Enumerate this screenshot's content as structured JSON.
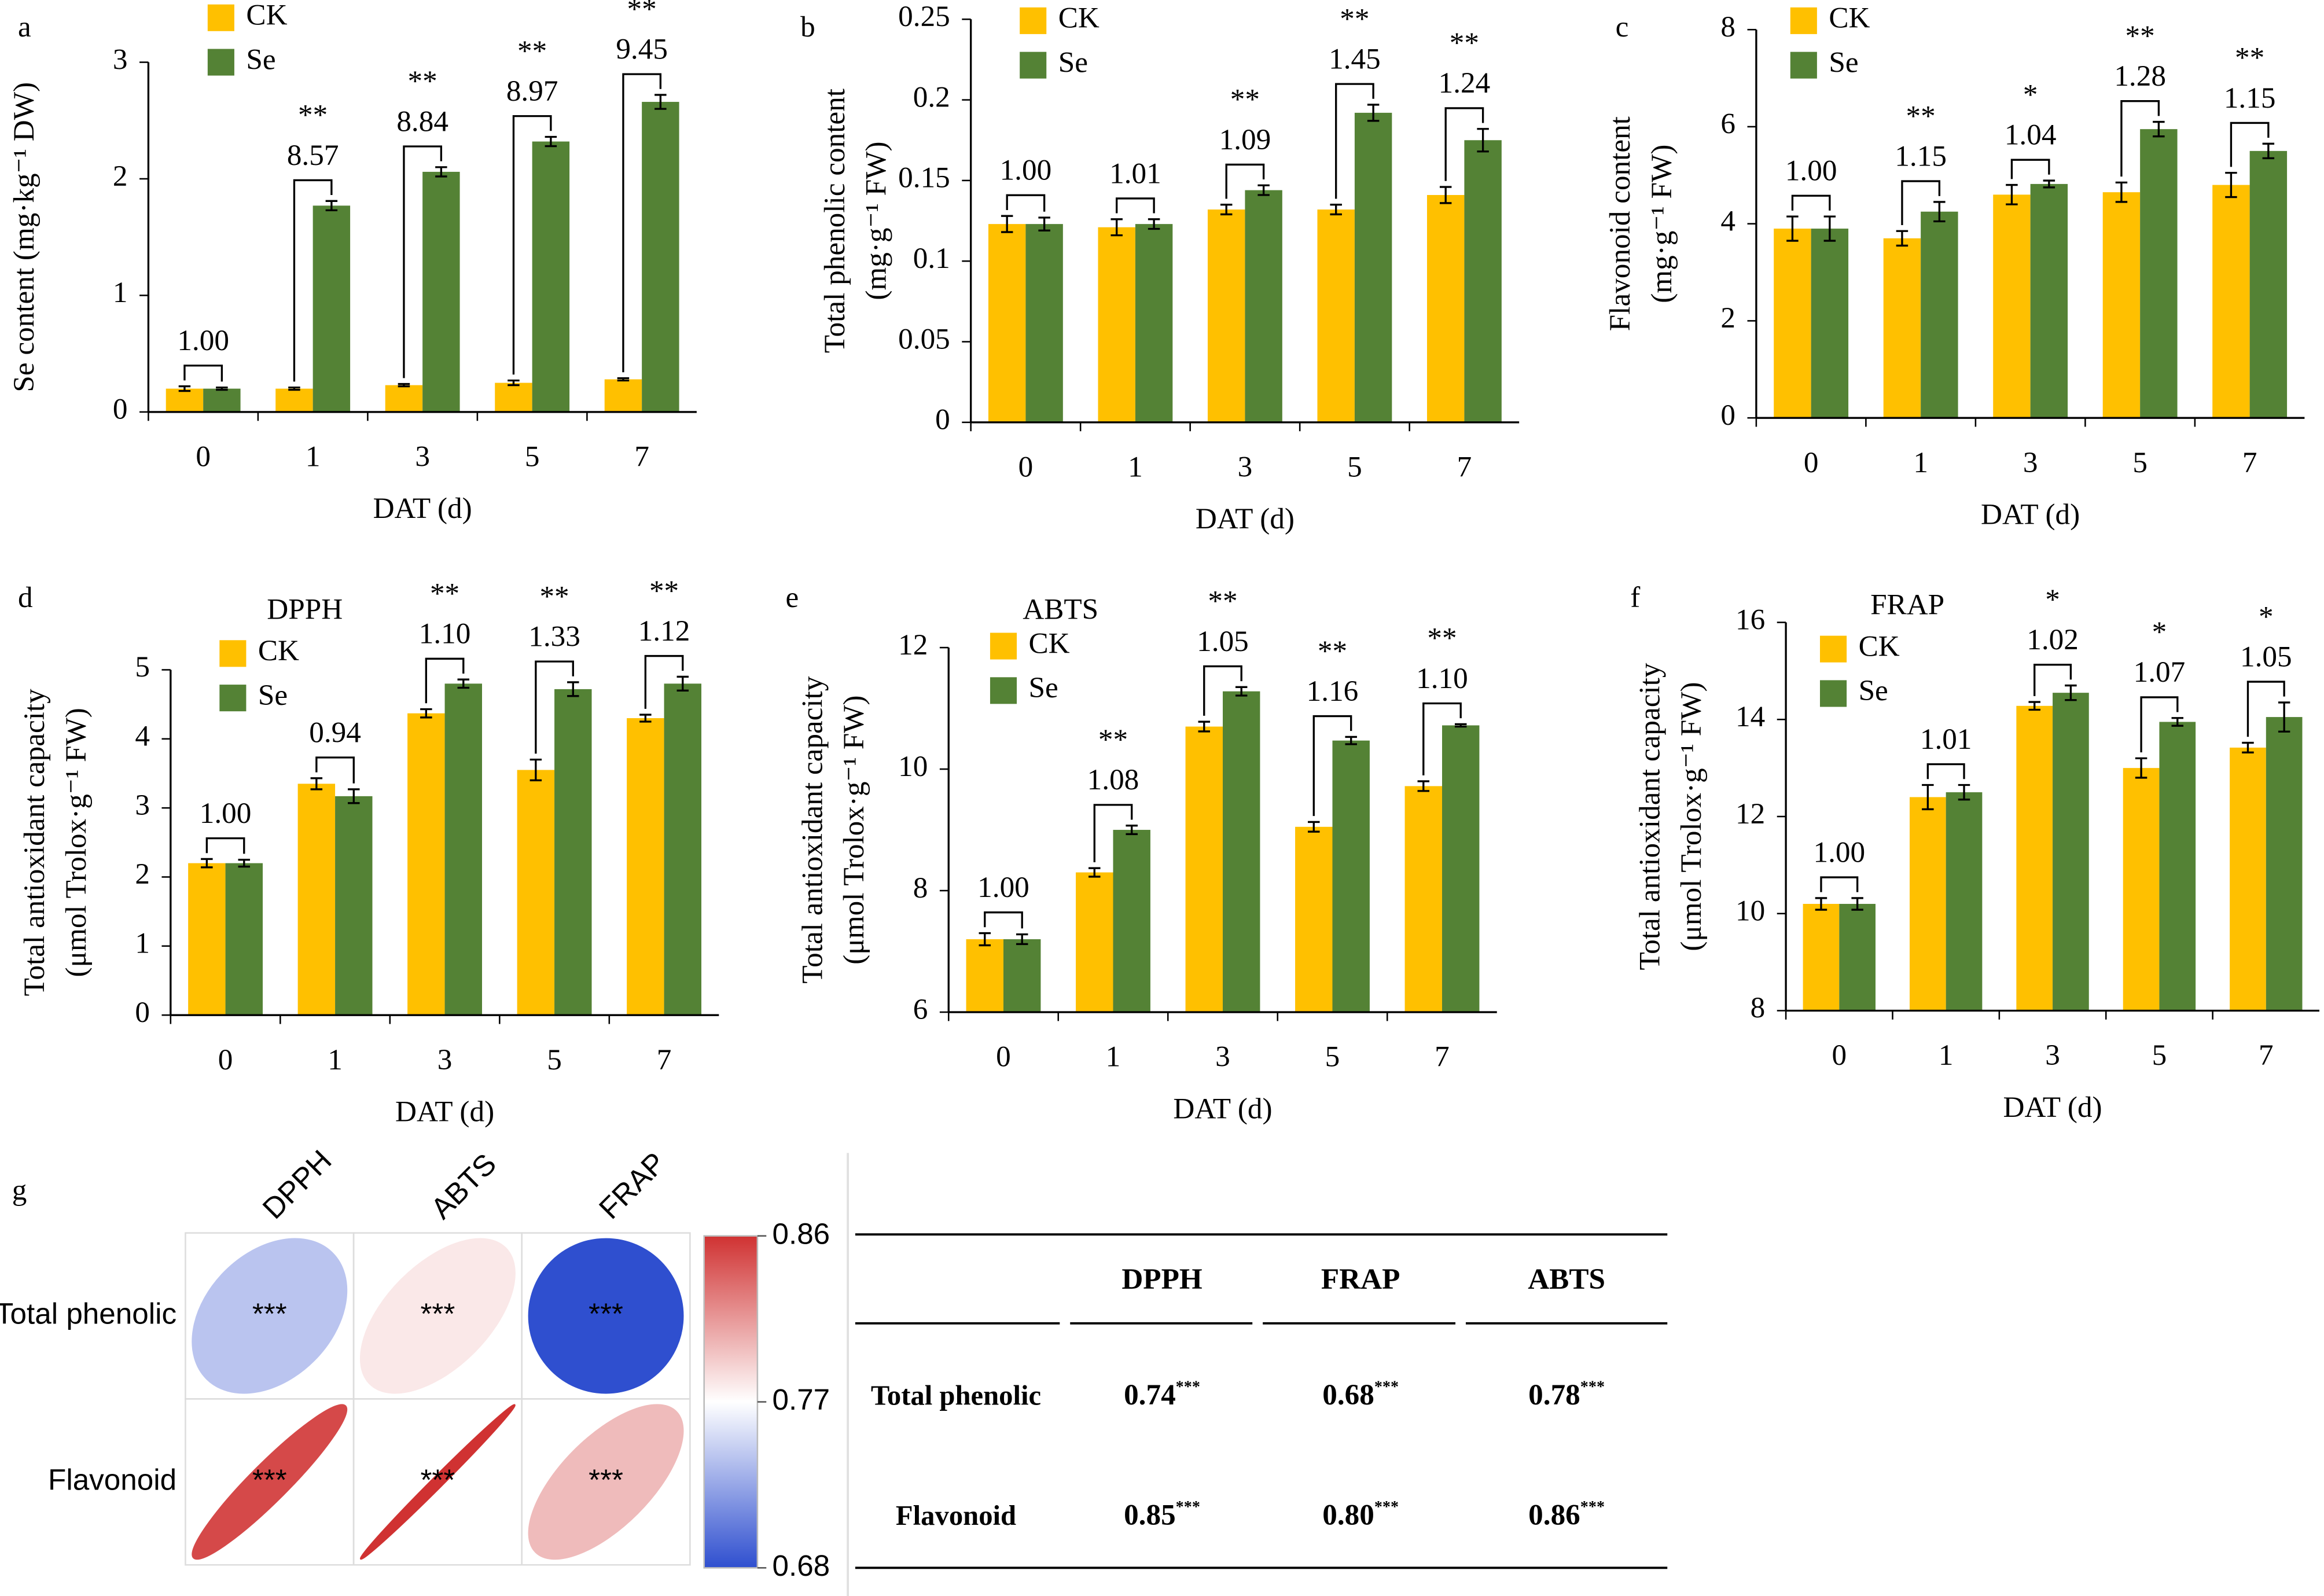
{
  "chart_data": [
    {
      "type": "bar",
      "panel": "a",
      "ylabel": [
        "Se content (mg·kg⁻¹ DW)"
      ],
      "xlabel": "DAT (d)",
      "categories": [
        "0",
        "1",
        "3",
        "5",
        "7"
      ],
      "legend": "upper left",
      "series": [
        {
          "name": "CK",
          "color": "#ffc000",
          "values": [
            0.2,
            0.2,
            0.23,
            0.25,
            0.28
          ],
          "errors": [
            0.02,
            0.01,
            0.01,
            0.02,
            0.01
          ]
        },
        {
          "name": "Se",
          "color": "#548235",
          "values": [
            0.2,
            1.77,
            2.06,
            2.32,
            2.66
          ],
          "errors": [
            0.01,
            0.04,
            0.04,
            0.04,
            0.06
          ]
        }
      ],
      "annotations": [
        "1.00",
        "8.57",
        "8.84",
        "8.97",
        "9.45"
      ],
      "significance": [
        null,
        "**",
        "**",
        "**",
        "**"
      ],
      "ylim": [
        0,
        3
      ],
      "yticks": [
        0,
        1,
        2,
        3
      ]
    },
    {
      "type": "bar",
      "panel": "b",
      "ylabel": [
        "Total phenolic content",
        "(mg·g⁻¹ FW)"
      ],
      "xlabel": "DAT (d)",
      "categories": [
        "0",
        "1",
        "3",
        "5",
        "7"
      ],
      "legend": "upper left",
      "series": [
        {
          "name": "CK",
          "color": "#ffc000",
          "values": [
            0.123,
            0.121,
            0.132,
            0.132,
            0.141
          ],
          "errors": [
            0.005,
            0.005,
            0.003,
            0.003,
            0.005
          ]
        },
        {
          "name": "Se",
          "color": "#548235",
          "values": [
            0.123,
            0.123,
            0.144,
            0.192,
            0.175
          ],
          "errors": [
            0.004,
            0.003,
            0.003,
            0.005,
            0.007
          ]
        }
      ],
      "annotations": [
        "1.00",
        "1.01",
        "1.09",
        "1.45",
        "1.24"
      ],
      "significance": [
        null,
        null,
        "**",
        "**",
        "**"
      ],
      "ylim": [
        0,
        0.25
      ],
      "yticks": [
        0,
        0.05,
        0.1,
        0.15,
        0.2,
        0.25
      ]
    },
    {
      "type": "bar",
      "panel": "c",
      "ylabel": [
        "Flavonoid content",
        "(mg·g⁻¹ FW)"
      ],
      "xlabel": "DAT (d)",
      "categories": [
        "0",
        "1",
        "3",
        "5",
        "7"
      ],
      "legend": "upper left",
      "series": [
        {
          "name": "CK",
          "color": "#ffc000",
          "values": [
            3.9,
            3.7,
            4.6,
            4.65,
            4.8
          ],
          "errors": [
            0.25,
            0.15,
            0.2,
            0.2,
            0.25
          ]
        },
        {
          "name": "Se",
          "color": "#548235",
          "values": [
            3.9,
            4.25,
            4.82,
            5.95,
            5.5
          ],
          "errors": [
            0.25,
            0.2,
            0.07,
            0.15,
            0.15
          ]
        }
      ],
      "annotations": [
        "1.00",
        "1.15",
        "1.04",
        "1.28",
        "1.15"
      ],
      "significance": [
        null,
        "**",
        "*",
        "**",
        "**"
      ],
      "ylim": [
        0,
        8
      ],
      "yticks": [
        0,
        2,
        4,
        6,
        8
      ]
    },
    {
      "type": "bar",
      "panel": "d",
      "subtitle": "DPPH",
      "subtitle_color": "#ff0000",
      "ylabel": [
        "Total antioxidant capacity",
        "(μmol Trolox·g⁻¹ FW)"
      ],
      "xlabel": "DAT (d)",
      "categories": [
        "0",
        "1",
        "3",
        "5",
        "7"
      ],
      "legend": "upper left",
      "series": [
        {
          "name": "CK",
          "color": "#ffc000",
          "values": [
            2.2,
            3.35,
            4.37,
            3.55,
            4.3
          ],
          "errors": [
            0.06,
            0.08,
            0.06,
            0.15,
            0.05
          ]
        },
        {
          "name": "Se",
          "color": "#548235",
          "values": [
            2.2,
            3.17,
            4.8,
            4.72,
            4.8
          ],
          "errors": [
            0.05,
            0.1,
            0.06,
            0.1,
            0.1
          ]
        }
      ],
      "annotations": [
        "1.00",
        "0.94",
        "1.10",
        "1.33",
        "1.12"
      ],
      "significance": [
        null,
        null,
        "**",
        "**",
        "**"
      ],
      "ylim": [
        0,
        5
      ],
      "yticks": [
        0,
        1,
        2,
        3,
        4,
        5
      ]
    },
    {
      "type": "bar",
      "panel": "e",
      "subtitle": "ABTS",
      "subtitle_color": "#ff0000",
      "ylabel": [
        "Total antioxidant capacity",
        "(μmol Trolox·g⁻¹ FW)"
      ],
      "xlabel": "DAT (d)",
      "categories": [
        "0",
        "1",
        "3",
        "5",
        "7"
      ],
      "legend": "upper left",
      "series": [
        {
          "name": "CK",
          "color": "#ffc000",
          "values": [
            7.2,
            8.3,
            10.7,
            9.05,
            9.72
          ],
          "errors": [
            0.1,
            0.07,
            0.08,
            0.08,
            0.08
          ]
        },
        {
          "name": "Se",
          "color": "#548235",
          "values": [
            7.2,
            9.0,
            11.28,
            10.47,
            10.72
          ],
          "errors": [
            0.08,
            0.07,
            0.07,
            0.06,
            0.02
          ]
        }
      ],
      "annotations": [
        "1.00",
        "1.08",
        "1.05",
        "1.16",
        "1.10"
      ],
      "significance": [
        null,
        "**",
        "**",
        "**",
        "**"
      ],
      "ylim": [
        6,
        12
      ],
      "yticks": [
        6,
        8,
        10,
        12
      ]
    },
    {
      "type": "bar",
      "panel": "f",
      "subtitle": "FRAP",
      "subtitle_color": "#ff0000",
      "ylabel": [
        "Total antioxidant capacity",
        "(μmol Trolox·g⁻¹ FW)"
      ],
      "xlabel": "DAT (d)",
      "categories": [
        "0",
        "1",
        "3",
        "5",
        "7"
      ],
      "legend": "upper left",
      "series": [
        {
          "name": "CK",
          "color": "#ffc000",
          "values": [
            10.2,
            12.4,
            14.28,
            13.0,
            13.42
          ],
          "errors": [
            0.12,
            0.25,
            0.08,
            0.2,
            0.1
          ]
        },
        {
          "name": "Se",
          "color": "#548235",
          "values": [
            10.2,
            12.5,
            14.55,
            13.95,
            14.05
          ],
          "errors": [
            0.12,
            0.15,
            0.15,
            0.08,
            0.3
          ]
        }
      ],
      "annotations": [
        "1.00",
        "1.01",
        "1.02",
        "1.07",
        "1.05"
      ],
      "significance": [
        null,
        null,
        "*",
        "*",
        "*"
      ],
      "ylim": [
        8,
        16
      ],
      "yticks": [
        8,
        10,
        12,
        14,
        16
      ]
    },
    {
      "type": "correlogram",
      "panel": "g",
      "rows": [
        "Total phenolic",
        "Flavonoid"
      ],
      "columns": [
        "DPPH",
        "ABTS",
        "FRAP"
      ],
      "values": [
        [
          0.74,
          0.78,
          0.68
        ],
        [
          0.85,
          0.86,
          0.8
        ]
      ],
      "labels": [
        [
          "***",
          "***",
          "***"
        ],
        [
          "***",
          "***",
          "***"
        ]
      ],
      "colors": [
        "#2f4fcf",
        "#ffffff",
        "#d03232"
      ],
      "clim": [
        0.68,
        0.86
      ],
      "cticks": [
        0.68,
        0.77,
        0.86
      ]
    }
  ],
  "table": {
    "columns": [
      "DPPH",
      "FRAP",
      "ABTS"
    ],
    "rows": [
      {
        "label": "Total phenolic",
        "cells": [
          {
            "value": "0.74",
            "sig": "***"
          },
          {
            "value": "0.68",
            "sig": "***"
          },
          {
            "value": "0.78",
            "sig": "***"
          }
        ]
      },
      {
        "label": "Flavonoid",
        "cells": [
          {
            "value": "0.85",
            "sig": "***"
          },
          {
            "value": "0.80",
            "sig": "***"
          },
          {
            "value": "0.86",
            "sig": "***"
          }
        ]
      }
    ]
  }
}
